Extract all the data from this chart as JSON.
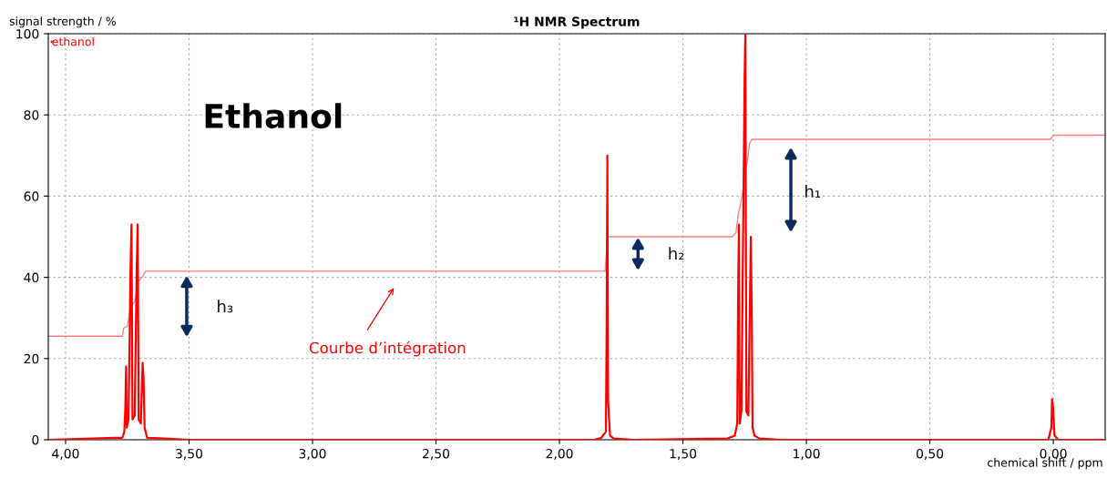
{
  "chart_data": {
    "type": "line",
    "title": "¹H NMR Spectrum",
    "xlabel": "chemical shift / ppm",
    "ylabel": "signal strength / %",
    "xlim": [
      4.07,
      -0.21
    ],
    "ylim": [
      0,
      100
    ],
    "xticks": [
      {
        "value": 4,
        "label": "4,00"
      },
      {
        "value": 3.5,
        "label": "3,50"
      },
      {
        "value": 3,
        "label": "3,00"
      },
      {
        "value": 2.5,
        "label": "2,50"
      },
      {
        "value": 2,
        "label": "2,00"
      },
      {
        "value": 1.5,
        "label": "1,50"
      },
      {
        "value": 1,
        "label": "1,00"
      },
      {
        "value": 0.5,
        "label": "0,50"
      },
      {
        "value": 0,
        "label": "0,00"
      }
    ],
    "yticks": [
      0,
      20,
      40,
      60,
      80,
      100
    ],
    "grid": true,
    "legend": "top left",
    "series": [
      {
        "name": "ethanol",
        "color": "#ff0000",
        "x": [
          4.07,
          3.8,
          3.77,
          3.762,
          3.758,
          3.755,
          3.752,
          3.745,
          3.737,
          3.733,
          3.729,
          3.72,
          3.712,
          3.708,
          3.704,
          3.695,
          3.688,
          3.684,
          3.68,
          3.67,
          3.6,
          3.5,
          1.86,
          1.83,
          1.812,
          1.809,
          1.806,
          1.803,
          1.8,
          1.795,
          1.78,
          1.7,
          1.32,
          1.29,
          1.28,
          1.276,
          1.273,
          1.27,
          1.263,
          1.25,
          1.247,
          1.243,
          1.235,
          1.225,
          1.221,
          1.218,
          1.21,
          1.19,
          1.1,
          0.02,
          0.008,
          0.005,
          0.001,
          -0.005,
          -0.02,
          -0.21
        ],
        "values": [
          0,
          0.5,
          0.5,
          2,
          8,
          18,
          3,
          5,
          42,
          53,
          5,
          6,
          42,
          53,
          5,
          4,
          19,
          15,
          3,
          0.5,
          0.3,
          0,
          0,
          0.5,
          2,
          26,
          70,
          10,
          6,
          1,
          0.3,
          0,
          0.3,
          1,
          4,
          39,
          53,
          4,
          7,
          90,
          100,
          7,
          6,
          50,
          30,
          3,
          1,
          0.3,
          0,
          0,
          3,
          10,
          8,
          1,
          0,
          0
        ]
      },
      {
        "color": "#ff8080",
        "x": [
          4.07,
          3.77,
          3.765,
          3.75,
          3.735,
          3.72,
          3.705,
          3.69,
          3.675,
          1.815,
          1.805,
          1.3,
          1.285,
          1.275,
          1.27,
          1.255,
          1.25,
          1.24,
          1.23,
          1.22,
          0.01,
          0.0,
          -0.21
        ],
        "values": [
          25.5,
          25.5,
          27.5,
          28,
          33,
          34,
          39,
          40,
          41.5,
          41.5,
          50,
          50,
          51,
          56,
          57,
          62,
          67,
          68,
          73,
          74,
          74,
          75,
          75
        ]
      }
    ],
    "annotations": [
      "Ethanol",
      "h₁",
      "h₂",
      "h₃",
      "Courbe d’intégration"
    ]
  }
}
